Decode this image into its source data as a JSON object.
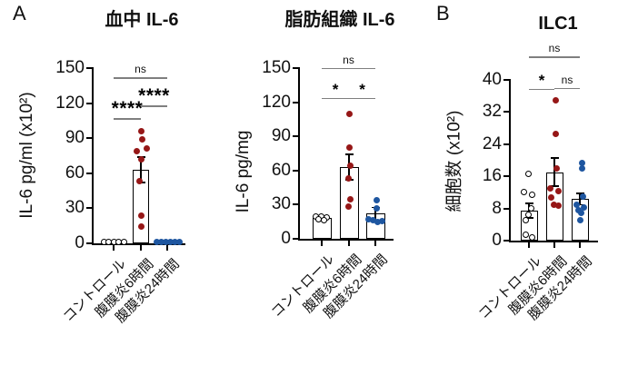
{
  "figure": {
    "panel_a_label": "A",
    "panel_b_label": "B"
  },
  "colors": {
    "red_points": "#961717",
    "blue_points": "#1e56a0",
    "open_points": "#ffffff",
    "axis": "#000000",
    "sig_line": "#7f7f7f",
    "background": "#ffffff"
  },
  "chart_data": [
    {
      "type": "bar",
      "title": "血中 IL-6",
      "ylabel": "IL-6 pg/ml (x10²)",
      "ylim": [
        0,
        150
      ],
      "ymax": 150,
      "ytick_step": 30,
      "yticks": [
        0,
        30,
        60,
        90,
        120,
        150
      ],
      "categories": [
        "コントロール",
        "腹膜炎6時間",
        "腹膜炎24時間"
      ],
      "series": [
        {
          "name": "コントロール",
          "style": "open",
          "mean": 1.2,
          "sem": 0,
          "points": [
            [
              1,
              -11
            ],
            [
              1.1,
              -5.5
            ],
            [
              0.9,
              0
            ],
            [
              1.1,
              5.5
            ],
            [
              1,
              11
            ]
          ]
        },
        {
          "name": "腹膜炎6時間",
          "style": "red",
          "mean": 63,
          "sem": 11,
          "points": [
            [
              96,
              0
            ],
            [
              89,
              1
            ],
            [
              81,
              6
            ],
            [
              79,
              -5
            ],
            [
              72,
              0
            ],
            [
              53,
              -2
            ],
            [
              24,
              0
            ],
            [
              14,
              0
            ]
          ]
        },
        {
          "name": "腹膜炎24時間",
          "style": "blue",
          "mean": 0.9,
          "sem": 0,
          "points": [
            [
              1,
              -12
            ],
            [
              1.1,
              -7
            ],
            [
              0.9,
              -2
            ],
            [
              1.2,
              3
            ],
            [
              0.8,
              8
            ],
            [
              1,
              13
            ]
          ]
        }
      ],
      "comparisons": [
        {
          "a": 0,
          "b": 1,
          "label": "****",
          "y": 107,
          "size": "big"
        },
        {
          "a": 1,
          "b": 2,
          "label": "****",
          "y": 118,
          "size": "big"
        },
        {
          "a": 0,
          "b": 2,
          "label": "ns",
          "y": 142,
          "size": "ns"
        }
      ]
    },
    {
      "type": "bar",
      "title": "脂肪組織 IL-6",
      "ylabel": "IL-6 pg/mg",
      "ylim": [
        0,
        150
      ],
      "ymax": 150,
      "ytick_step": 30,
      "yticks": [
        0,
        30,
        60,
        90,
        120,
        150
      ],
      "categories": [
        "コントロール",
        "腹膜炎6時間",
        "腹膜炎24時間"
      ],
      "series": [
        {
          "name": "コントロール",
          "style": "open",
          "mean": 18,
          "sem": 1.5,
          "points": [
            [
              19.5,
              -7
            ],
            [
              19.5,
              -1
            ],
            [
              19,
              5
            ],
            [
              17,
              -4
            ],
            [
              16.5,
              2
            ]
          ]
        },
        {
          "name": "腹膜炎6時間",
          "style": "red",
          "mean": 63,
          "sem": 11,
          "points": [
            [
              110,
              0
            ],
            [
              80,
              0
            ],
            [
              64,
              1
            ],
            [
              53,
              -1
            ],
            [
              35,
              1
            ],
            [
              28,
              -1
            ]
          ]
        },
        {
          "name": "腹膜炎24時間",
          "style": "blue",
          "mean": 22,
          "sem": 5.5,
          "points": [
            [
              34,
              1
            ],
            [
              27,
              1
            ],
            [
              17,
              -8
            ],
            [
              16,
              -3
            ],
            [
              15,
              2
            ],
            [
              15.5,
              7
            ]
          ]
        }
      ],
      "comparisons": [
        {
          "a": 0,
          "b": 1,
          "label": "*",
          "y": 124,
          "size": "star"
        },
        {
          "a": 1,
          "b": 2,
          "label": "*",
          "y": 124,
          "size": "star"
        },
        {
          "a": 0,
          "b": 2,
          "label": "ns",
          "y": 150,
          "size": "ns"
        }
      ]
    },
    {
      "type": "bar",
      "title": "ILC1",
      "ylabel": "細胞数 (x10²)",
      "ylim": [
        0,
        40
      ],
      "ymax": 40,
      "ytick_step": 8,
      "yticks": [
        0,
        8,
        16,
        24,
        32,
        40
      ],
      "categories": [
        "コントロール",
        "腹膜炎6時間",
        "腹膜炎24時間"
      ],
      "series": [
        {
          "name": "コントロール",
          "style": "open",
          "mean": 7.5,
          "sem": 1.8,
          "points": [
            [
              16.5,
              -1
            ],
            [
              12,
              -6
            ],
            [
              11.5,
              3
            ],
            [
              8,
              2
            ],
            [
              6.5,
              -1
            ],
            [
              5,
              -4
            ],
            [
              1.5,
              -4
            ],
            [
              0.7,
              3
            ]
          ]
        },
        {
          "name": "腹膜炎6時間",
          "style": "red",
          "mean": 17,
          "sem": 3.5,
          "points": [
            [
              35,
              1
            ],
            [
              26.5,
              1
            ],
            [
              18,
              2
            ],
            [
              13,
              -5
            ],
            [
              12.3,
              4
            ],
            [
              10.7,
              -4
            ],
            [
              9,
              -1
            ],
            [
              8.8,
              4
            ]
          ]
        },
        {
          "name": "腹膜炎24時間",
          "style": "blue",
          "mean": 10.3,
          "sem": 1.4,
          "points": [
            [
              19.3,
              2
            ],
            [
              18,
              2
            ],
            [
              11,
              3
            ],
            [
              9,
              -4
            ],
            [
              8.3,
              4
            ],
            [
              7.6,
              -2
            ],
            [
              7,
              1
            ],
            [
              5,
              0
            ]
          ]
        }
      ],
      "comparisons": [
        {
          "a": 0,
          "b": 1,
          "label": "*",
          "y": 37.8,
          "size": "star"
        },
        {
          "a": 1,
          "b": 2,
          "label": "ns",
          "y": 38,
          "size": "ns"
        },
        {
          "a": 0,
          "b": 2,
          "label": "ns",
          "y": 45.8,
          "size": "ns"
        }
      ]
    }
  ]
}
